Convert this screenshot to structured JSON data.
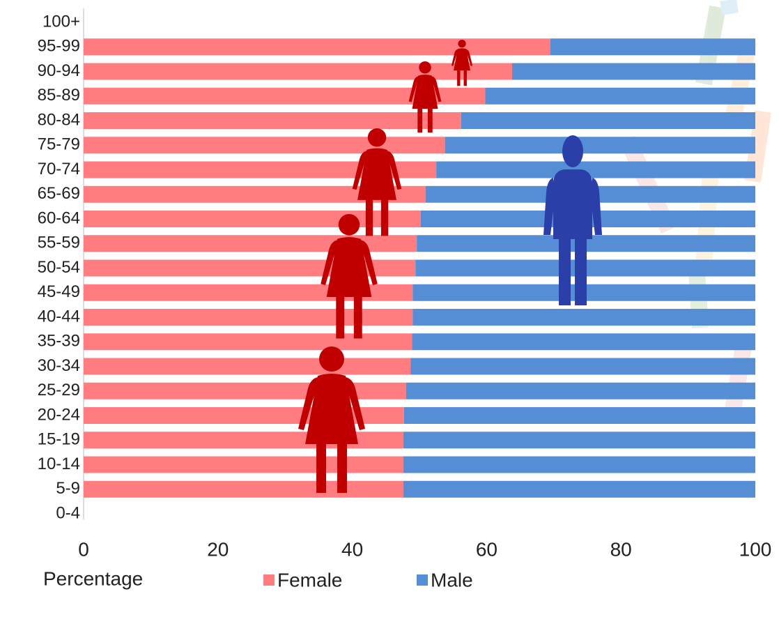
{
  "chart_data": {
    "type": "stacked-bar",
    "orientation": "horizontal",
    "x_label": "Percentage",
    "categories": [
      "0-4",
      "5-9",
      "10-14",
      "15-19",
      "20-24",
      "25-29",
      "30-34",
      "35-39",
      "40-44",
      "45-49",
      "50-54",
      "55-59",
      "60-64",
      "65-69",
      "70-74",
      "75-79",
      "80-84",
      "85-89",
      "90-94",
      "95-99",
      "100+"
    ],
    "series": [
      {
        "name": "Female",
        "color": "#ff7c80",
        "values": [
          null,
          47.6,
          47.6,
          47.6,
          47.7,
          48.0,
          48.7,
          48.9,
          49.0,
          49.0,
          49.4,
          49.6,
          50.2,
          50.9,
          52.5,
          53.8,
          56.2,
          59.8,
          63.8,
          69.5,
          null
        ]
      },
      {
        "name": "Male",
        "color": "#558ed5",
        "values": [
          null,
          52.4,
          52.4,
          52.4,
          52.3,
          52.0,
          51.3,
          51.1,
          51.0,
          51.0,
          50.6,
          50.4,
          49.8,
          49.1,
          47.5,
          46.2,
          43.8,
          40.2,
          36.2,
          30.5,
          null
        ]
      }
    ],
    "xlim": [
      0,
      100
    ],
    "xticks": [
      0,
      20,
      40,
      60,
      80,
      100
    ],
    "grid": false
  }
}
